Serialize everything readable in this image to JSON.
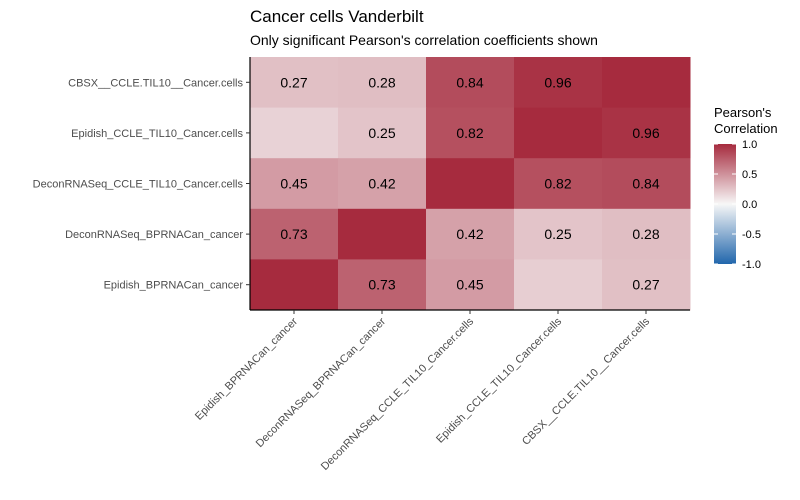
{
  "chart_data": {
    "type": "heatmap",
    "title": "Cancer cells Vanderbilt",
    "subtitle": "Only significant Pearson's correlation coefficients shown",
    "x_categories": [
      "Epidish_BPRNACan_cancer",
      "DeconRNASeq_BPRNACan_cancer",
      "DeconRNASeq_CCLE_TIL10_Cancer.cells",
      "Epidish_CCLE_TIL10_Cancer.cells",
      "CBSX__CCLE.TIL10__Cancer.cells"
    ],
    "y_categories": [
      "CBSX__CCLE.TIL10__Cancer.cells",
      "Epidish_CCLE_TIL10_Cancer.cells",
      "DeconRNASeq_CCLE_TIL10_Cancer.cells",
      "DeconRNASeq_BPRNACan_cancer",
      "Epidish_BPRNACan_cancer"
    ],
    "values": [
      [
        0.27,
        0.28,
        0.84,
        0.96,
        1.0
      ],
      [
        0.18,
        0.25,
        0.82,
        1.0,
        0.96
      ],
      [
        0.45,
        0.42,
        1.0,
        0.82,
        0.84
      ],
      [
        0.73,
        1.0,
        0.42,
        0.25,
        0.28
      ],
      [
        1.0,
        0.73,
        0.45,
        0.2,
        0.27
      ]
    ],
    "labels": [
      [
        "0.27",
        "0.28",
        "0.84",
        "0.96",
        ""
      ],
      [
        "",
        "0.25",
        "0.82",
        "",
        "0.96"
      ],
      [
        "0.45",
        "0.42",
        "",
        "0.82",
        "0.84"
      ],
      [
        "0.73",
        "",
        "0.42",
        "0.25",
        "0.28"
      ],
      [
        "",
        "0.73",
        "0.45",
        "",
        "0.27"
      ]
    ],
    "legend": {
      "title_lines": [
        "Pearson's",
        "Correlation"
      ],
      "ticks": [
        "1.0",
        "0.5",
        "0.0",
        "-0.5",
        "-1.0"
      ],
      "range": [
        -1,
        1
      ],
      "placement": "right"
    },
    "colors": {
      "low": "#2166ac",
      "mid": "#f7f7f7",
      "high": "#a62b3e"
    }
  }
}
